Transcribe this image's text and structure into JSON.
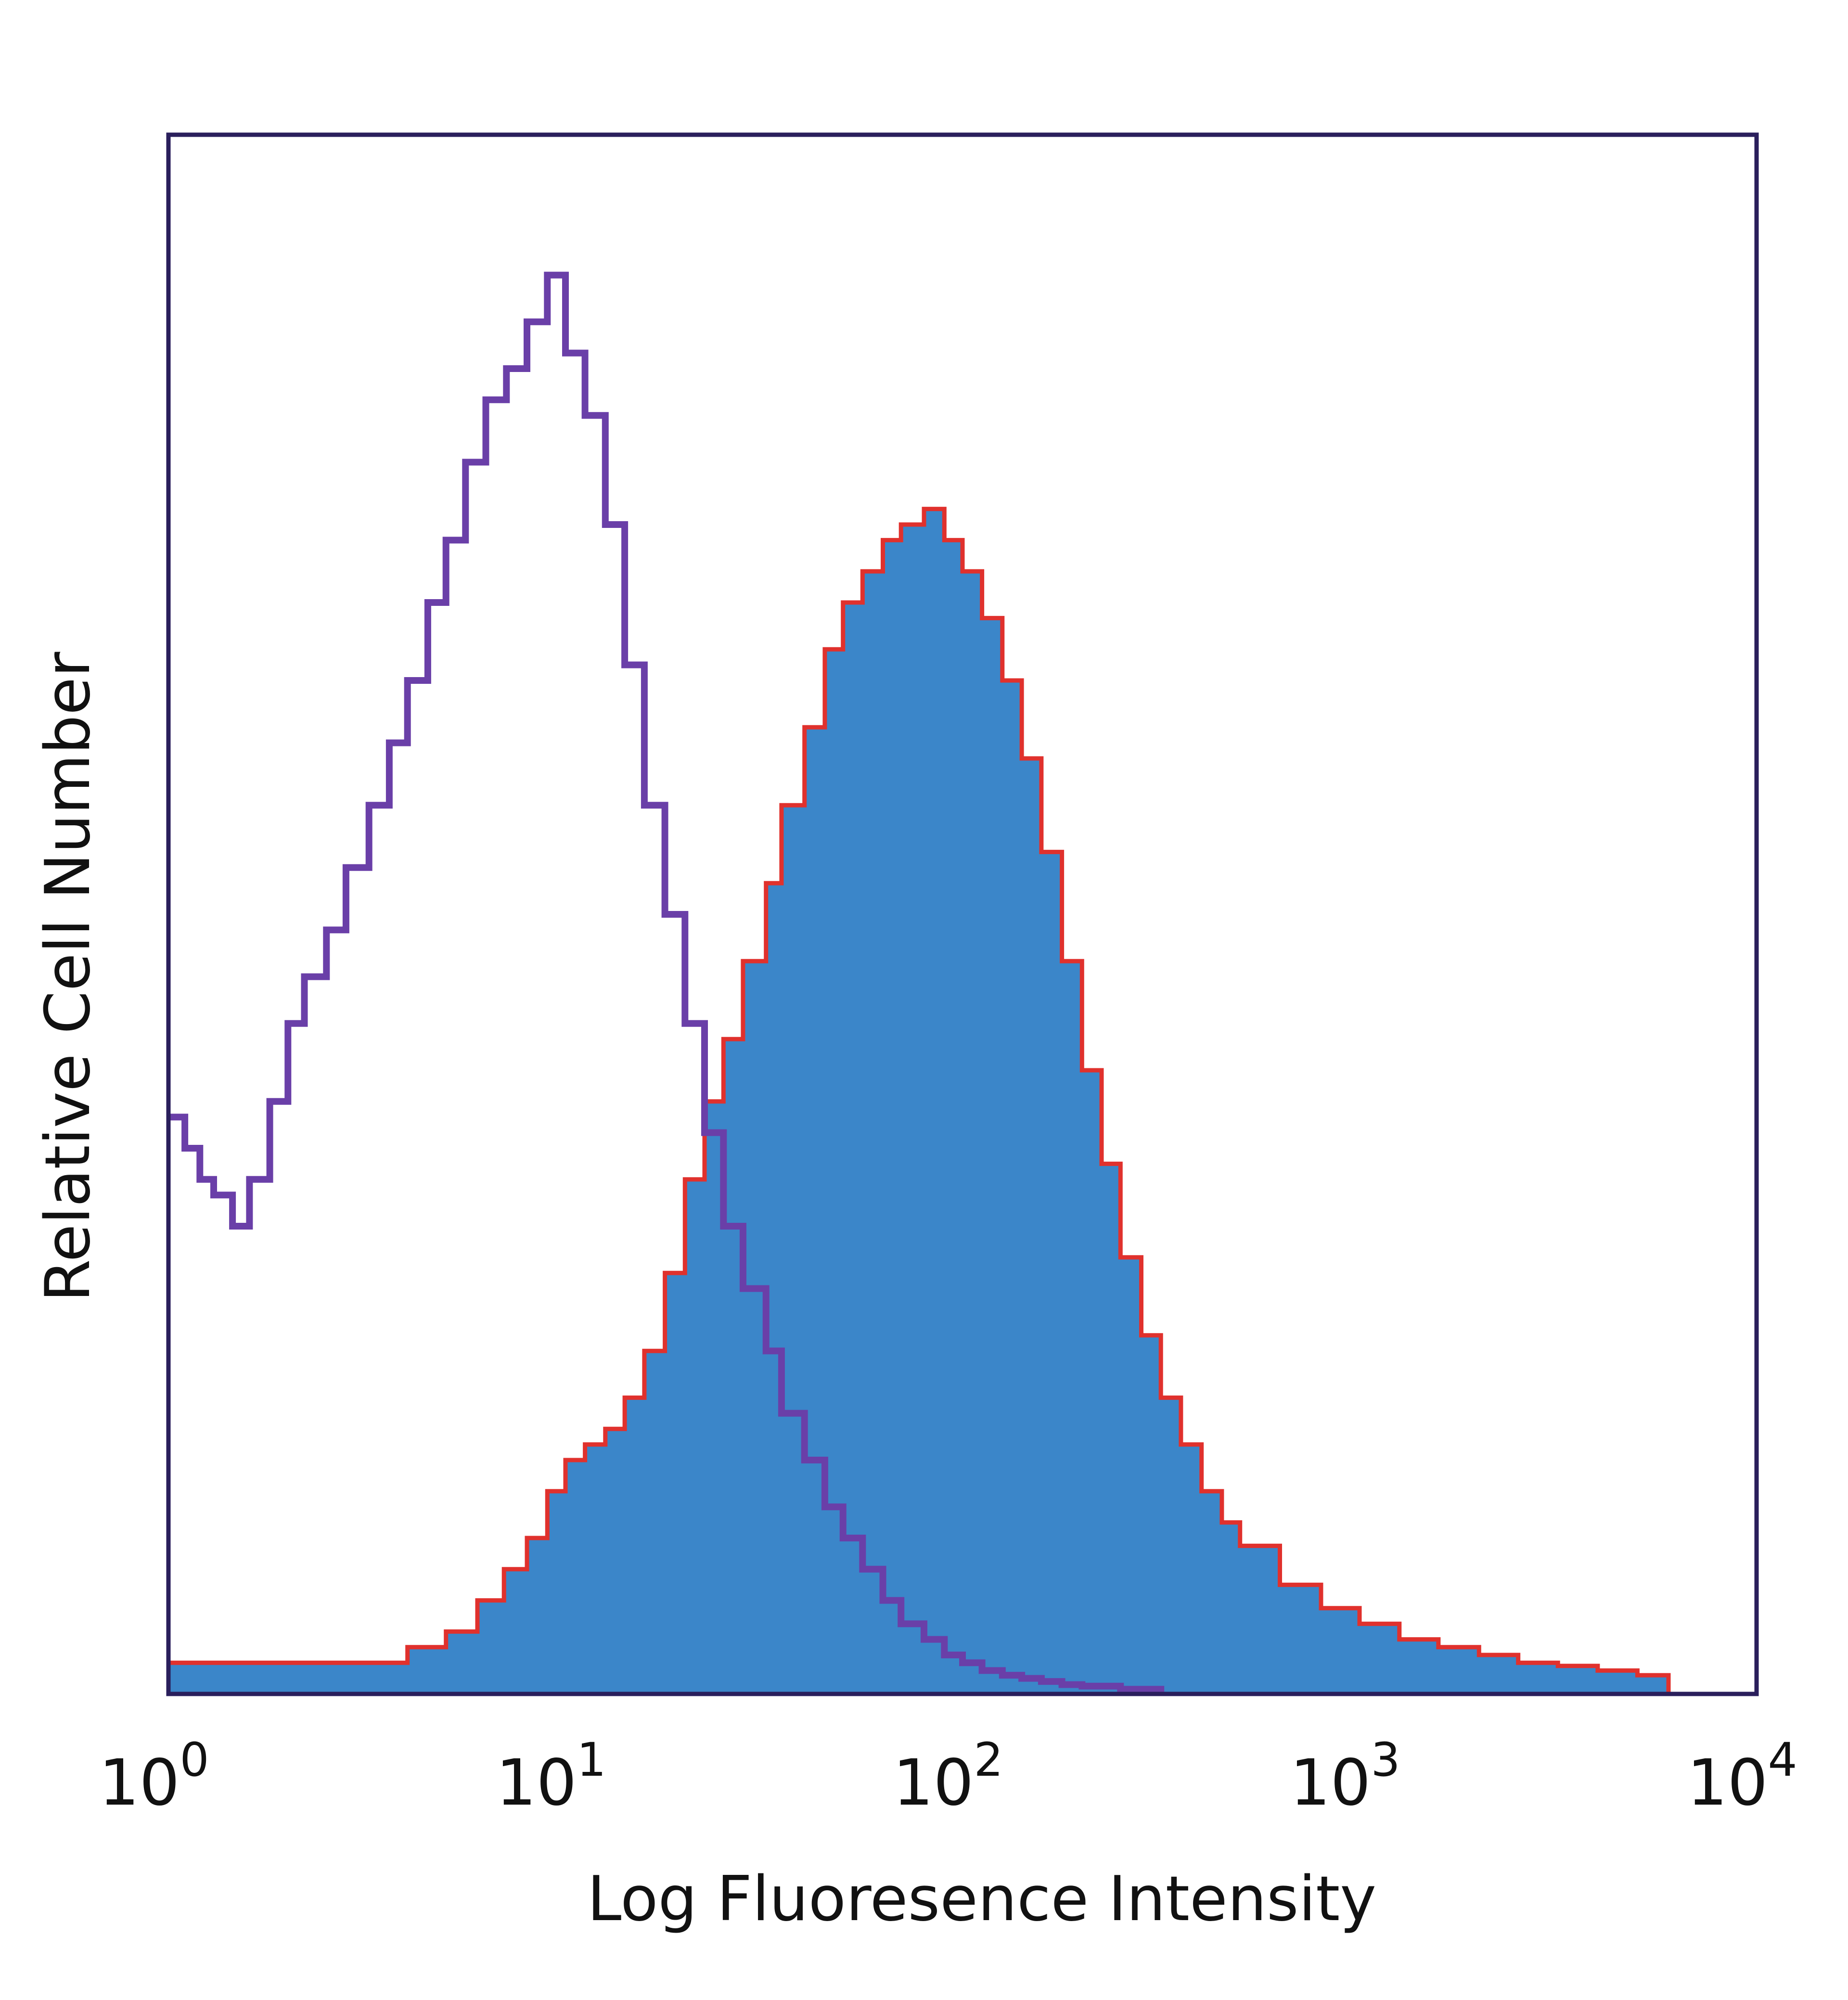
{
  "chart_data": {
    "type": "area",
    "x_scale": "log",
    "xlim": [
      1,
      10000
    ],
    "ylim": [
      0,
      1
    ],
    "xlabel": "Log Fluoresence Intensity",
    "ylabel": "Relative Cell Number",
    "x_ticks": [
      {
        "base": "10",
        "exp": "0",
        "value": 1
      },
      {
        "base": "10",
        "exp": "1",
        "value": 10
      },
      {
        "base": "10",
        "exp": "2",
        "value": 100
      },
      {
        "base": "10",
        "exp": "3",
        "value": 1000
      },
      {
        "base": "10",
        "exp": "4",
        "value": 10000
      }
    ],
    "grid": false,
    "legend": "none",
    "series": [
      {
        "style": "open-outline",
        "color": "#6a3fa8",
        "x": [
          1,
          1.1,
          1.2,
          1.3,
          1.45,
          1.6,
          1.8,
          2.0,
          2.2,
          2.5,
          2.8,
          3.2,
          3.6,
          4.0,
          4.5,
          5.0,
          5.6,
          6.3,
          7.1,
          8.0,
          9.0,
          10,
          11.2,
          12.6,
          14.1,
          15.8,
          17.8,
          20,
          22.4,
          25,
          28,
          32,
          35,
          40,
          45,
          50,
          56,
          63,
          70,
          80,
          90,
          100,
          112,
          126,
          141,
          158,
          178,
          200,
          250,
          316
        ],
        "values": [
          0.37,
          0.35,
          0.33,
          0.32,
          0.3,
          0.33,
          0.38,
          0.43,
          0.46,
          0.49,
          0.53,
          0.57,
          0.61,
          0.65,
          0.7,
          0.74,
          0.79,
          0.83,
          0.85,
          0.88,
          0.91,
          0.86,
          0.82,
          0.75,
          0.66,
          0.57,
          0.5,
          0.43,
          0.36,
          0.3,
          0.26,
          0.22,
          0.18,
          0.15,
          0.12,
          0.1,
          0.08,
          0.06,
          0.045,
          0.035,
          0.025,
          0.02,
          0.015,
          0.012,
          0.01,
          0.008,
          0.006,
          0.005,
          0.003,
          0.0
        ]
      },
      {
        "style": "filled",
        "color": "#3b86c9",
        "outline_color": "#e0312d",
        "x": [
          1,
          2,
          3,
          4,
          5,
          6,
          7,
          8,
          9,
          10,
          11.2,
          12.6,
          14.1,
          15.8,
          17.8,
          20,
          22.4,
          25,
          28,
          32,
          35,
          40,
          45,
          50,
          56,
          63,
          70,
          80,
          90,
          100,
          112,
          126,
          141,
          158,
          178,
          200,
          224,
          250,
          282,
          316,
          355,
          400,
          450,
          500,
          630,
          800,
          1000,
          1260,
          1580,
          2000,
          2510,
          3160,
          3980,
          5010,
          6000
        ],
        "values": [
          0.02,
          0.02,
          0.02,
          0.03,
          0.04,
          0.06,
          0.08,
          0.1,
          0.13,
          0.15,
          0.16,
          0.17,
          0.19,
          0.22,
          0.27,
          0.33,
          0.38,
          0.42,
          0.47,
          0.52,
          0.57,
          0.62,
          0.67,
          0.7,
          0.72,
          0.74,
          0.75,
          0.76,
          0.74,
          0.72,
          0.69,
          0.65,
          0.6,
          0.54,
          0.47,
          0.4,
          0.34,
          0.28,
          0.23,
          0.19,
          0.16,
          0.13,
          0.11,
          0.095,
          0.07,
          0.055,
          0.045,
          0.035,
          0.03,
          0.025,
          0.02,
          0.018,
          0.015,
          0.012,
          0.0
        ]
      }
    ]
  }
}
